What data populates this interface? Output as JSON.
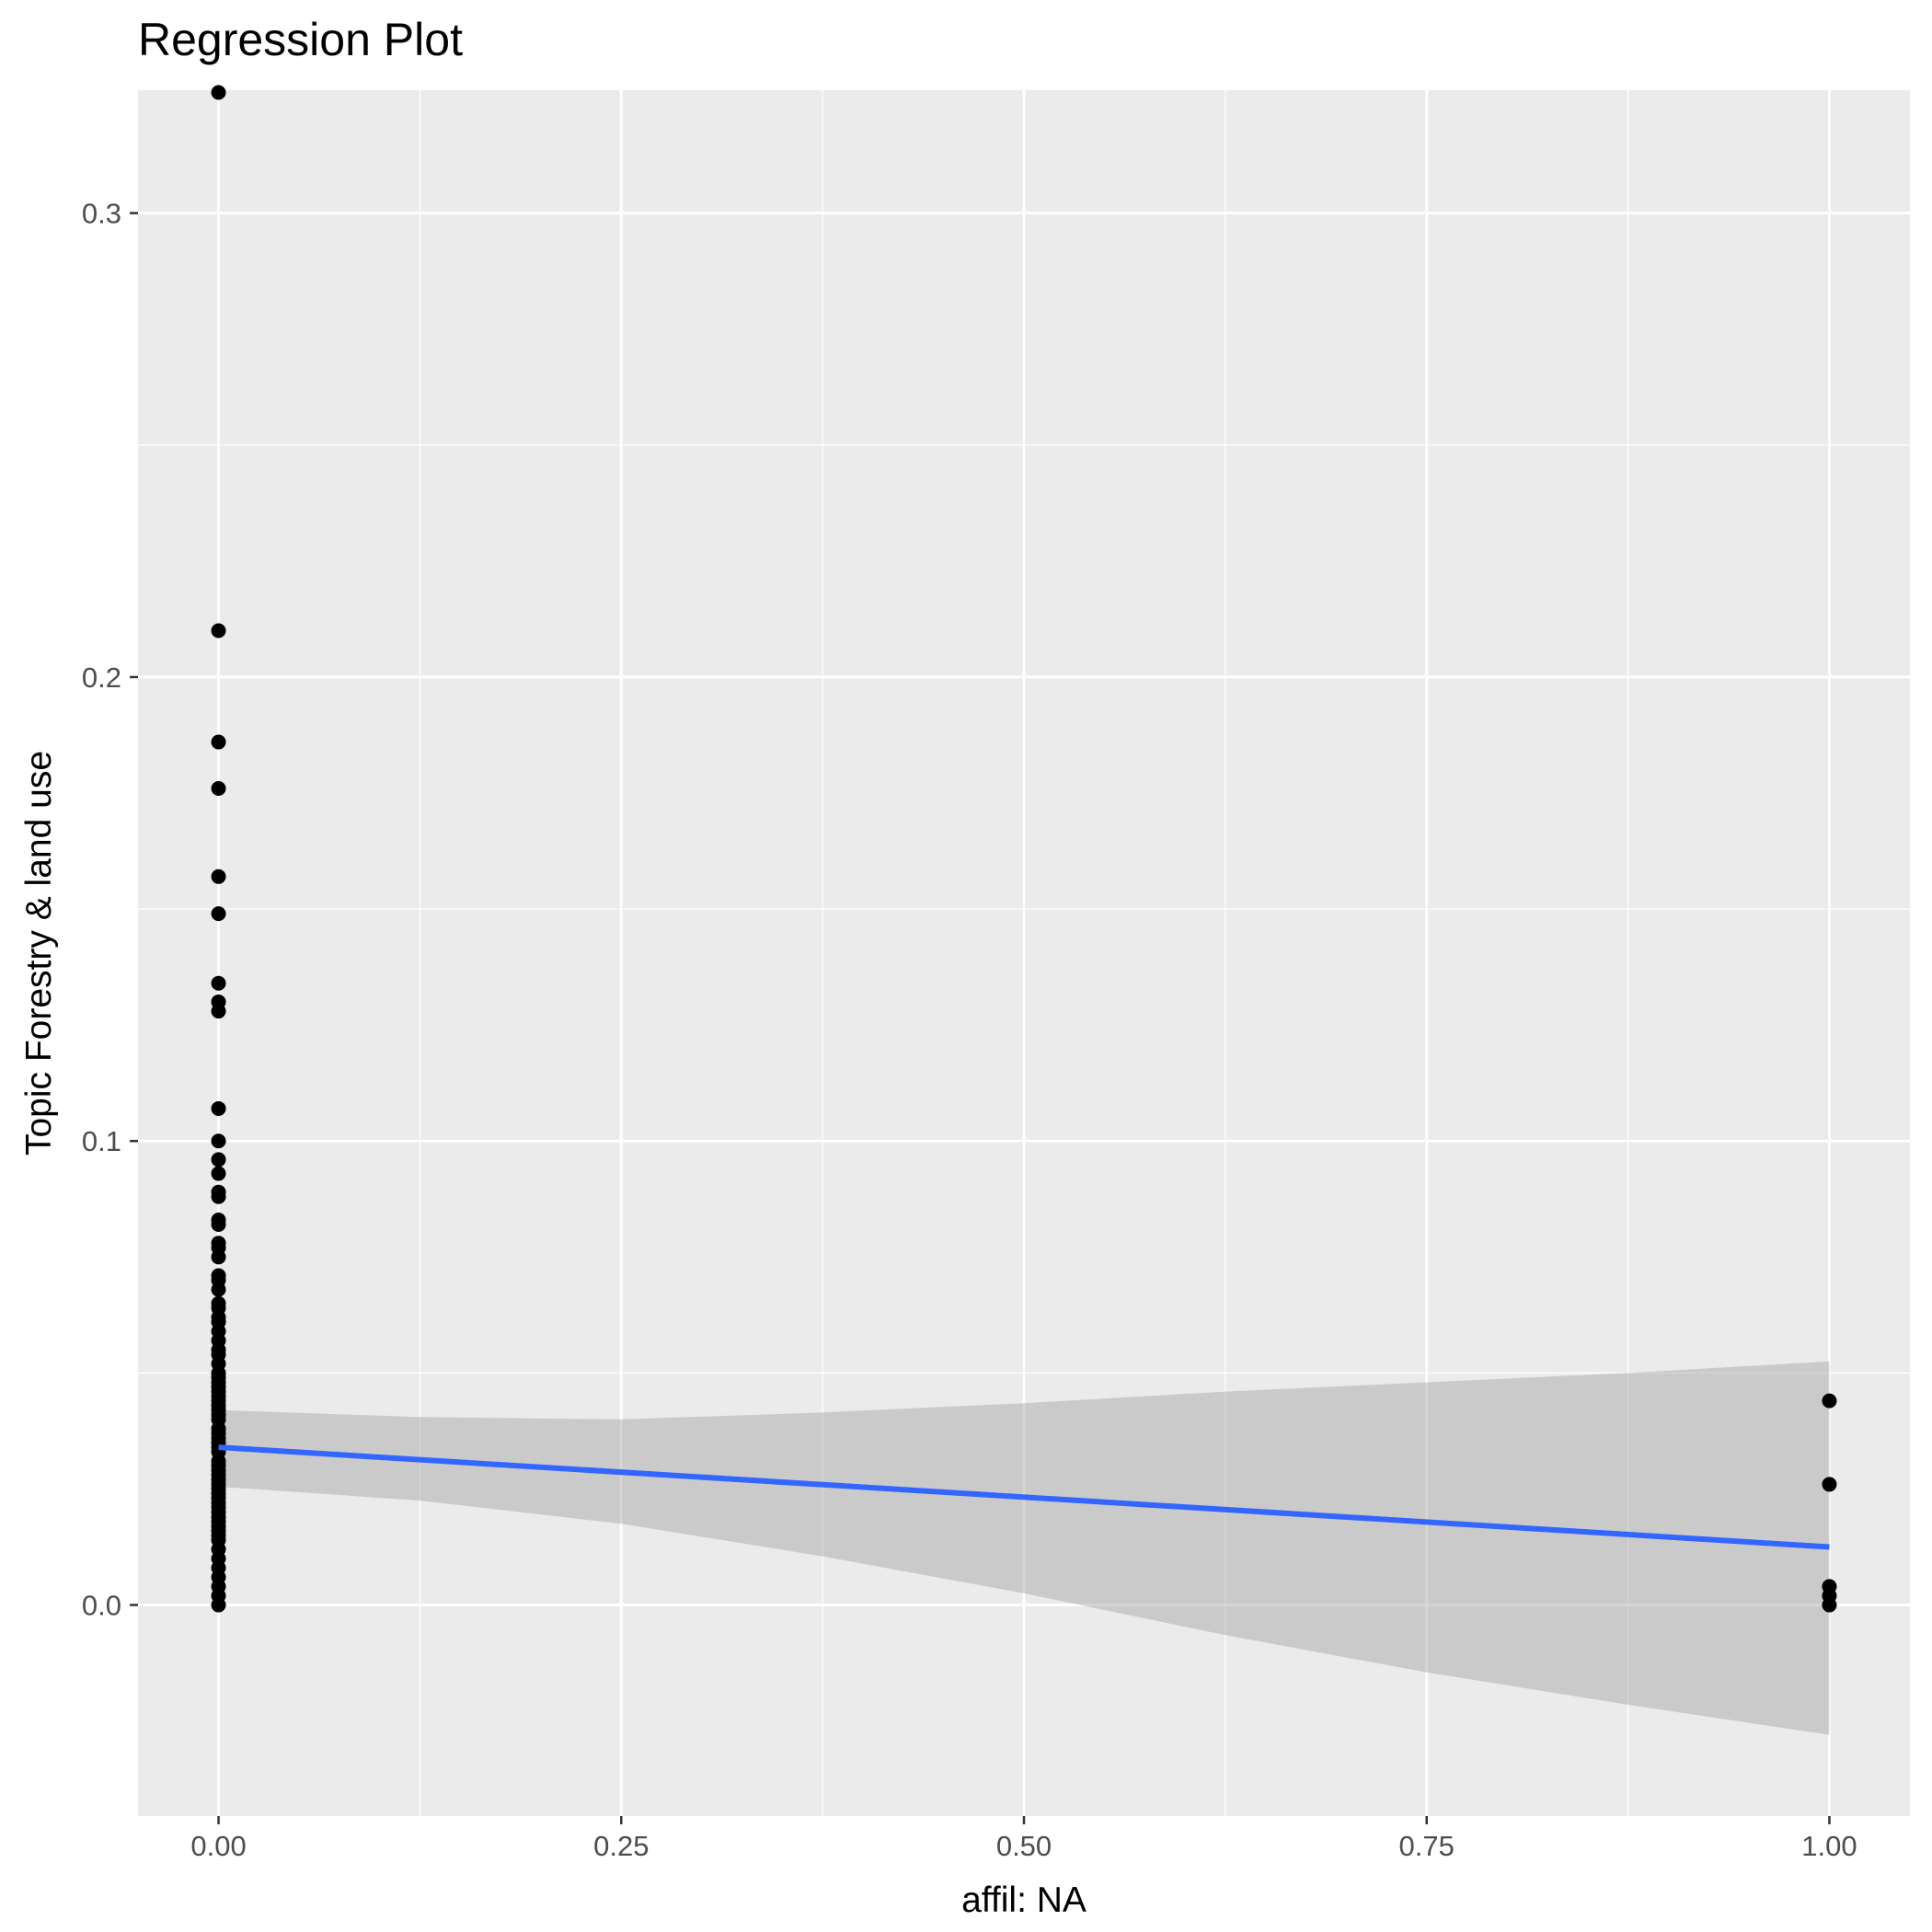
{
  "chart_data": {
    "type": "scatter",
    "title": "Regression Plot",
    "xlabel": "affil: NA",
    "ylabel": "Topic Forestry & land use",
    "xlim": [
      -0.05,
      1.05
    ],
    "ylim": [
      -0.0455,
      0.3265
    ],
    "x_ticks": [
      {
        "value": 0.0,
        "label": "0.00"
      },
      {
        "value": 0.25,
        "label": "0.25"
      },
      {
        "value": 0.5,
        "label": "0.50"
      },
      {
        "value": 0.75,
        "label": "0.75"
      },
      {
        "value": 1.0,
        "label": "1.00"
      }
    ],
    "x_minor": [
      0.125,
      0.375,
      0.625,
      0.875
    ],
    "y_ticks": [
      {
        "value": 0.0,
        "label": "0.0"
      },
      {
        "value": 0.1,
        "label": "0.1"
      },
      {
        "value": 0.2,
        "label": "0.2"
      },
      {
        "value": 0.3,
        "label": "0.3"
      }
    ],
    "y_minor": [
      -0.05,
      0.05,
      0.15,
      0.25
    ],
    "grid": true,
    "points": {
      "x": [
        0,
        0,
        0,
        0,
        0,
        0,
        0,
        0,
        0,
        0,
        0,
        0,
        0,
        0,
        0,
        0,
        0,
        0,
        0,
        0,
        0,
        0,
        0,
        0,
        0,
        0,
        0,
        0,
        0,
        0,
        0,
        0,
        0,
        0,
        0,
        0,
        0,
        0,
        0,
        0,
        0,
        0,
        0,
        0,
        0,
        0,
        0,
        0,
        0,
        0,
        0,
        0,
        0,
        0,
        0,
        0,
        0,
        0,
        0,
        0,
        0,
        0,
        0,
        0,
        0,
        0,
        0,
        0,
        0,
        0,
        0,
        0,
        0,
        0,
        1,
        1,
        1,
        1,
        1
      ],
      "y": [
        0.326,
        0.21,
        0.186,
        0.176,
        0.157,
        0.149,
        0.134,
        0.13,
        0.128,
        0.107,
        0.1,
        0.096,
        0.093,
        0.089,
        0.088,
        0.083,
        0.082,
        0.078,
        0.077,
        0.075,
        0.071,
        0.07,
        0.068,
        0.065,
        0.064,
        0.062,
        0.061,
        0.059,
        0.057,
        0.055,
        0.054,
        0.052,
        0.05,
        0.049,
        0.048,
        0.047,
        0.046,
        0.045,
        0.044,
        0.043,
        0.042,
        0.041,
        0.04,
        0.038,
        0.037,
        0.036,
        0.035,
        0.034,
        0.033,
        0.031,
        0.03,
        0.029,
        0.028,
        0.027,
        0.026,
        0.025,
        0.024,
        0.023,
        0.022,
        0.021,
        0.02,
        0.019,
        0.018,
        0.017,
        0.016,
        0.015,
        0.014,
        0.012,
        0.01,
        0.008,
        0.006,
        0.004,
        0.002,
        0.0,
        0.044,
        0.026,
        0.004,
        0.002,
        0.0
      ]
    },
    "fit_line": {
      "x": [
        0,
        1
      ],
      "y": [
        0.034,
        0.0125
      ]
    },
    "confidence_band": {
      "x": [
        0,
        0.125,
        0.25,
        0.375,
        0.5,
        0.625,
        0.75,
        0.875,
        1
      ],
      "lower": [
        0.0255,
        0.0225,
        0.0175,
        0.0105,
        0.0025,
        -0.0065,
        -0.0145,
        -0.0215,
        -0.028
      ],
      "upper": [
        0.042,
        0.0405,
        0.04,
        0.0415,
        0.0435,
        0.046,
        0.048,
        0.05,
        0.0525
      ]
    },
    "colors": {
      "panel": "#ebebeb",
      "grid": "#ffffff",
      "points": "#000000",
      "fit_line": "#3366ff",
      "band": "#cccccc"
    }
  }
}
